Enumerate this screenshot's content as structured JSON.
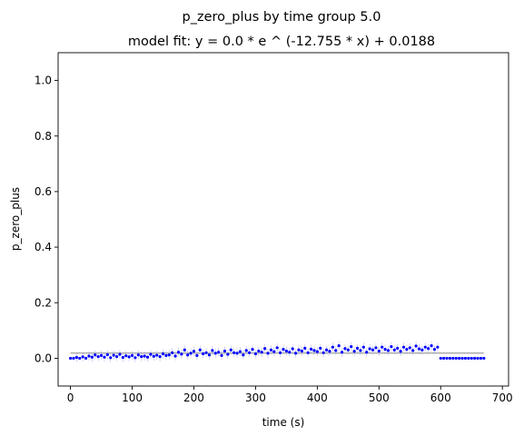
{
  "chart_data": {
    "type": "scatter",
    "title": "p_zero_plus by time group 5.0",
    "subtitle": "model fit: y = 0.0 * e ^ (-12.755 * x) + 0.0188",
    "xlabel": "time (s)",
    "ylabel": "p_zero_plus",
    "xlim": [
      -20,
      710
    ],
    "ylim": [
      -0.1,
      1.1
    ],
    "xticks": [
      "0",
      "100",
      "200",
      "300",
      "400",
      "500",
      "600",
      "700"
    ],
    "xtick_values": [
      0,
      100,
      200,
      300,
      400,
      500,
      600,
      700
    ],
    "yticks": [
      "0.0",
      "0.2",
      "0.4",
      "0.6",
      "0.8",
      "1.0"
    ],
    "ytick_values": [
      0,
      0.2,
      0.4,
      0.6,
      0.8,
      1.0
    ],
    "grid": false,
    "fit_line": {
      "x": [
        0,
        670
      ],
      "y": [
        0.0188,
        0.0188
      ],
      "color": "#b0b0b0"
    },
    "series": [
      {
        "color": "#0000ff",
        "x": [
          0,
          5,
          10,
          15,
          20,
          25,
          30,
          35,
          40,
          45,
          50,
          55,
          60,
          65,
          70,
          75,
          80,
          85,
          90,
          95,
          100,
          105,
          110,
          115,
          120,
          125,
          130,
          135,
          140,
          145,
          150,
          155,
          160,
          165,
          170,
          175,
          180,
          185,
          190,
          195,
          200,
          205,
          210,
          215,
          220,
          225,
          230,
          235,
          240,
          245,
          250,
          255,
          260,
          265,
          270,
          275,
          280,
          285,
          290,
          295,
          300,
          305,
          310,
          315,
          320,
          325,
          330,
          335,
          340,
          345,
          350,
          355,
          360,
          365,
          370,
          375,
          380,
          385,
          390,
          395,
          400,
          405,
          410,
          415,
          420,
          425,
          430,
          435,
          440,
          445,
          450,
          455,
          460,
          465,
          470,
          475,
          480,
          485,
          490,
          495,
          500,
          505,
          510,
          515,
          520,
          525,
          530,
          535,
          540,
          545,
          550,
          555,
          560,
          565,
          570,
          575,
          580,
          585,
          590,
          595,
          600,
          605,
          610,
          615,
          620,
          625,
          630,
          635,
          640,
          645,
          650,
          655,
          660,
          665,
          670
        ],
        "y": [
          0.0,
          0.0,
          0.003,
          0.0,
          0.005,
          0.0,
          0.008,
          0.004,
          0.012,
          0.006,
          0.01,
          0.004,
          0.013,
          0.002,
          0.011,
          0.006,
          0.014,
          0.003,
          0.009,
          0.005,
          0.01,
          0.002,
          0.012,
          0.006,
          0.008,
          0.004,
          0.014,
          0.007,
          0.011,
          0.006,
          0.016,
          0.01,
          0.012,
          0.02,
          0.008,
          0.022,
          0.015,
          0.03,
          0.012,
          0.018,
          0.025,
          0.01,
          0.03,
          0.016,
          0.02,
          0.012,
          0.028,
          0.018,
          0.022,
          0.01,
          0.026,
          0.014,
          0.03,
          0.02,
          0.018,
          0.024,
          0.012,
          0.028,
          0.02,
          0.032,
          0.016,
          0.026,
          0.022,
          0.035,
          0.018,
          0.03,
          0.024,
          0.038,
          0.02,
          0.032,
          0.026,
          0.022,
          0.034,
          0.018,
          0.03,
          0.026,
          0.036,
          0.02,
          0.033,
          0.028,
          0.024,
          0.036,
          0.02,
          0.03,
          0.025,
          0.04,
          0.028,
          0.045,
          0.022,
          0.035,
          0.03,
          0.042,
          0.025,
          0.036,
          0.028,
          0.04,
          0.022,
          0.034,
          0.03,
          0.038,
          0.026,
          0.04,
          0.032,
          0.028,
          0.042,
          0.03,
          0.036,
          0.025,
          0.04,
          0.032,
          0.038,
          0.028,
          0.044,
          0.034,
          0.03,
          0.04,
          0.035,
          0.045,
          0.032,
          0.04,
          0.0,
          0.0,
          0.0,
          0.0,
          0.0,
          0.0,
          0.0,
          0.0,
          0.0,
          0.0,
          0.0,
          0.0,
          0.0,
          0.0,
          0.0
        ]
      }
    ]
  }
}
